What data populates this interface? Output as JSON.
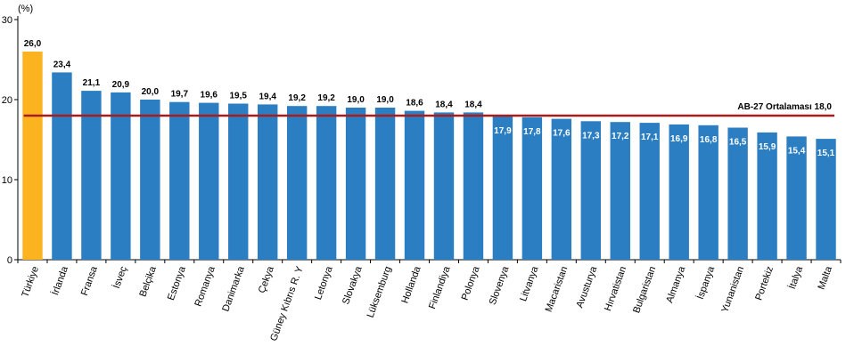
{
  "chart_data": {
    "type": "bar",
    "unit_label": "(%)",
    "ylim": [
      0,
      30
    ],
    "yticks": [
      0,
      10,
      20,
      30
    ],
    "grid": false,
    "categories": [
      "Türkiye",
      "İrlanda",
      "Fransa",
      "İsveç",
      "Belçika",
      "Estonya",
      "Romanya",
      "Danimarka",
      "Çekya",
      "Güney Kıbrıs R. Y",
      "Letonya",
      "Slovakya",
      "Lüksemburg",
      "Hollanda",
      "Finlandiya",
      "Polonya",
      "Slovenya",
      "Litvanya",
      "Macaristan",
      "Avusturya",
      "Hırvatistan",
      "Bulgaristan",
      "Almanya",
      "İspanya",
      "Yunanistan",
      "Portekiz",
      "İtalya",
      "Malta"
    ],
    "values": [
      26.0,
      23.4,
      21.1,
      20.9,
      20.0,
      19.7,
      19.6,
      19.5,
      19.4,
      19.2,
      19.2,
      19.0,
      19.0,
      18.6,
      18.4,
      18.4,
      17.9,
      17.8,
      17.6,
      17.3,
      17.2,
      17.1,
      16.9,
      16.8,
      16.5,
      15.9,
      15.4,
      15.1
    ],
    "value_labels": [
      "26,0",
      "23,4",
      "21,1",
      "20,9",
      "20,0",
      "19,7",
      "19,6",
      "19,5",
      "19,4",
      "19,2",
      "19,2",
      "19,0",
      "19,0",
      "18,6",
      "18,4",
      "18,4",
      "17,9",
      "17,8",
      "17,6",
      "17,3",
      "17,2",
      "17,1",
      "16,9",
      "16,8",
      "16,5",
      "15,9",
      "15,4",
      "15,1"
    ],
    "highlight_index": 0,
    "reference_line": {
      "label": "AB-27 Ortalaması 18,0",
      "value": 18.0
    },
    "colors": {
      "bar": "#2b7ec2",
      "highlight": "#fbb41f",
      "reference_line": "#a81c1c",
      "axis": "#000000"
    }
  }
}
